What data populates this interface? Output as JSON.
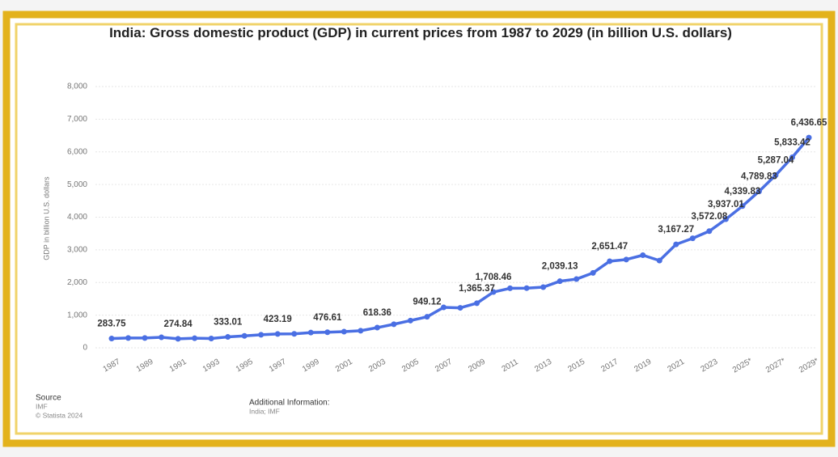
{
  "chart_data": {
    "type": "line",
    "title": "India: Gross domestic product (GDP) in current prices from 1987 to 2029 (in billion U.S. dollars)",
    "y_label": "GDP in billion U.S. dollars",
    "categories": [
      "1987",
      null,
      "1989",
      null,
      "1991",
      null,
      "1993",
      null,
      "1995",
      null,
      "1997",
      null,
      "1999",
      null,
      "2001",
      null,
      "2003",
      null,
      "2005",
      null,
      "2007",
      null,
      "2009",
      null,
      "2011",
      null,
      "2013",
      null,
      "2015",
      null,
      "2017",
      null,
      "2019",
      null,
      "2021",
      null,
      "2023",
      null,
      "2025*",
      null,
      "2027*",
      null,
      "2029*"
    ],
    "series": [
      {
        "name": "GDP",
        "color": "#4a6fe3",
        "values": [
          283.75,
          301,
          301,
          321,
          274.84,
          293,
          284,
          333.01,
          366,
          399,
          423.19,
          428,
          466,
          476.61,
          494,
          524,
          618.36,
          722,
          834,
          949.12,
          1238,
          1224,
          1365.37,
          1708.46,
          1823,
          1828,
          1857,
          2039.13,
          2104,
          2295,
          2651.47,
          2703,
          2836,
          2672,
          3167.27,
          3353,
          3572.08,
          3937.01,
          4339.83,
          4789.83,
          5287.04,
          5833.42,
          6436.65
        ],
        "value_labels": [
          "283.75",
          null,
          null,
          null,
          "274.84",
          null,
          null,
          "333.01",
          null,
          null,
          "423.19",
          null,
          null,
          "476.61",
          null,
          null,
          "618.36",
          null,
          null,
          "949.12",
          null,
          null,
          "1,365.37",
          "1,708.46",
          null,
          null,
          null,
          "2,039.13",
          null,
          null,
          "2,651.47",
          null,
          null,
          null,
          "3,167.27",
          null,
          "3,572.08",
          "3,937.01",
          "4,339.83",
          "4,789.83",
          "5,287.04",
          "5,833.42",
          "6,436.65"
        ]
      }
    ],
    "ylim": [
      0,
      8000
    ],
    "yticks": [
      0,
      {
        "value": 1000,
        "label": "1,000"
      },
      {
        "value": 2000,
        "label": "2,000"
      },
      {
        "value": 3000,
        "label": "3,000"
      },
      {
        "value": 4000,
        "label": "4,000"
      },
      {
        "value": 5000,
        "label": "5,000"
      },
      {
        "value": 6000,
        "label": "6,000"
      },
      {
        "value": 7000,
        "label": "7,000"
      },
      {
        "value": 8000,
        "label": "8,000"
      }
    ],
    "grid": true,
    "source_heading": "Source",
    "source": "IMF",
    "copyright": "© Statista 2024",
    "additional_heading": "Additional Information:",
    "additional": "India; IMF"
  }
}
